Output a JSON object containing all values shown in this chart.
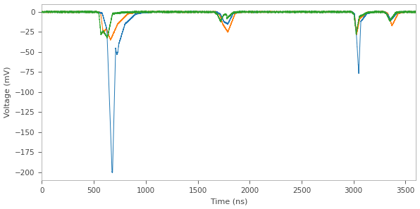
{
  "title": "",
  "xlabel": "Time (ns)",
  "ylabel": "Voltage (mV)",
  "xlim": [
    0,
    3600
  ],
  "ylim": [
    -210,
    10
  ],
  "xticks": [
    0,
    500,
    1000,
    1500,
    2000,
    2500,
    3000,
    3500
  ],
  "yticks": [
    0,
    -25,
    -50,
    -75,
    -100,
    -125,
    -150,
    -175,
    -200
  ],
  "colors": {
    "blue": "#1f77b4",
    "orange": "#ff7f0e",
    "green": "#2ca02c"
  },
  "background": "#ffffff",
  "linewidth": 0.7,
  "seed": 42,
  "figsize": [
    5.96,
    2.97
  ],
  "dpi": 100
}
